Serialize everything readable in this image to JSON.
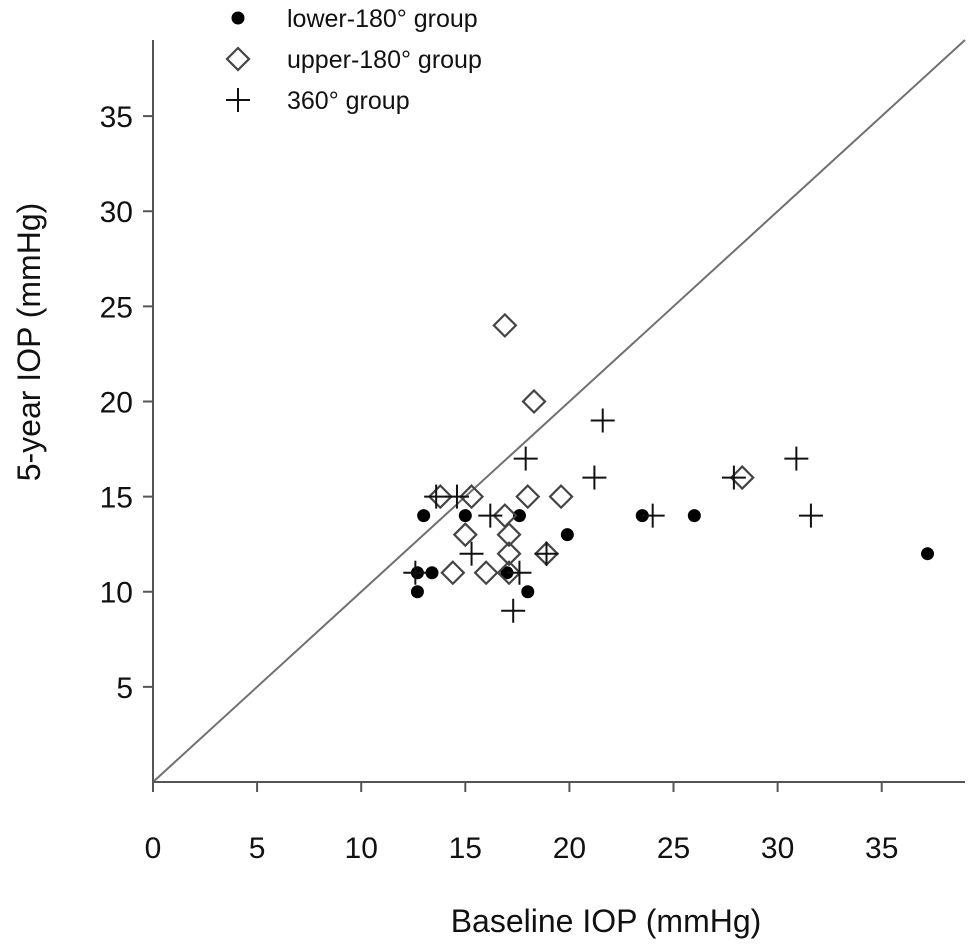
{
  "chart_data": {
    "type": "scatter",
    "title": "",
    "xlabel": "Baseline IOP (mmHg)",
    "ylabel": "5-year IOP (mmHg)",
    "xlim": [
      0,
      39
    ],
    "ylim": [
      0,
      39
    ],
    "x_ticks": [
      0,
      5,
      10,
      15,
      20,
      25,
      30,
      35
    ],
    "y_ticks": [
      5,
      10,
      15,
      20,
      25,
      30,
      35
    ],
    "x_tick_labels": [
      "0",
      "5",
      "10",
      "15",
      "20",
      "25",
      "30",
      "35"
    ],
    "y_tick_labels": [
      "5",
      "10",
      "15",
      "20",
      "25",
      "30",
      "35"
    ],
    "reference_line": {
      "type": "identity",
      "x": [
        0,
        39
      ],
      "y": [
        0,
        39
      ],
      "color": "#707070"
    },
    "legend": {
      "position": "top-left"
    },
    "series": [
      {
        "name": "lower-180° group",
        "marker": "filled-circle",
        "color": "#000000",
        "points": [
          [
            12.7,
            11
          ],
          [
            12.7,
            10
          ],
          [
            13.0,
            14
          ],
          [
            13.4,
            11
          ],
          [
            15.0,
            14
          ],
          [
            17.0,
            11
          ],
          [
            17.6,
            14
          ],
          [
            18.0,
            10
          ],
          [
            19.9,
            13
          ],
          [
            23.5,
            14
          ],
          [
            26.0,
            14
          ],
          [
            37.2,
            12
          ]
        ]
      },
      {
        "name": "upper-180° group",
        "marker": "open-diamond",
        "color": "#444444",
        "points": [
          [
            13.8,
            15
          ],
          [
            14.4,
            11
          ],
          [
            15.0,
            13
          ],
          [
            15.3,
            15
          ],
          [
            16.0,
            11
          ],
          [
            16.9,
            24
          ],
          [
            16.9,
            14
          ],
          [
            17.1,
            13
          ],
          [
            17.1,
            12
          ],
          [
            17.1,
            11
          ],
          [
            18.0,
            15
          ],
          [
            18.3,
            20
          ],
          [
            18.9,
            12
          ],
          [
            19.6,
            15
          ],
          [
            28.3,
            16
          ]
        ]
      },
      {
        "name": "360° group",
        "marker": "plus",
        "color": "#111111",
        "points": [
          [
            12.6,
            11
          ],
          [
            13.6,
            15
          ],
          [
            14.6,
            15
          ],
          [
            15.3,
            12
          ],
          [
            16.2,
            14
          ],
          [
            17.3,
            9
          ],
          [
            17.6,
            11
          ],
          [
            17.9,
            17
          ],
          [
            18.9,
            12
          ],
          [
            21.2,
            16
          ],
          [
            21.6,
            19
          ],
          [
            24.0,
            14
          ],
          [
            27.9,
            16
          ],
          [
            30.9,
            17
          ],
          [
            31.6,
            14
          ]
        ]
      }
    ]
  }
}
